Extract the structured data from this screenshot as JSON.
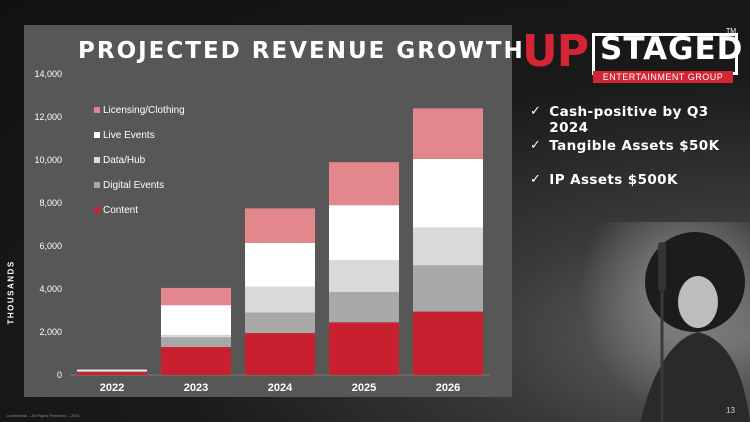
{
  "slide": {
    "title": "PROJECTED REVENUE GROWTH",
    "axis_unit_label": "THOUSANDS",
    "footer": "Confidential – All Rights Reserved – 2021",
    "page_number": "13"
  },
  "logo": {
    "up": "UP",
    "staged": "STAGED",
    "tm": "TM",
    "subtitle": "ENTERTAINMENT GROUP"
  },
  "bullets": [
    {
      "check": "✓",
      "text": "Cash-positive by Q3 2024"
    },
    {
      "check": "✓",
      "text": "Tangible Assets $50K"
    },
    {
      "check": "✓",
      "text": "IP Assets $500K"
    }
  ],
  "colors": {
    "panel": "#575757",
    "Content": "#c8202f",
    "Digital Events": "#a8a8a8",
    "Data/Hub": "#d9d9d9",
    "Live Events": "#ffffff",
    "Licensing/Clothing": "#e3878d"
  },
  "chart_data": {
    "type": "bar",
    "stacked": true,
    "categories": [
      "2022",
      "2023",
      "2024",
      "2025",
      "2026"
    ],
    "ylabel": "THOUSANDS",
    "ylim": [
      0,
      14000
    ],
    "yticks": [
      "0",
      "2,000",
      "4,000",
      "6,000",
      "8,000",
      "10,000",
      "12,000",
      "14,000"
    ],
    "grid": false,
    "legend_position": "top-left",
    "series": [
      {
        "name": "Content",
        "values": [
          150,
          1300,
          1950,
          2450,
          2950
        ]
      },
      {
        "name": "Digital Events",
        "values": [
          20,
          450,
          950,
          1400,
          2150
        ]
      },
      {
        "name": "Data/Hub",
        "values": [
          20,
          100,
          1200,
          1500,
          1750
        ]
      },
      {
        "name": "Live Events",
        "values": [
          60,
          1400,
          2050,
          2550,
          3200
        ]
      },
      {
        "name": "Licensing/Clothing",
        "values": [
          0,
          800,
          1600,
          2000,
          2350
        ]
      }
    ],
    "legend_order": [
      "Licensing/Clothing",
      "Live Events",
      "Data/Hub",
      "Digital Events",
      "Content"
    ]
  }
}
